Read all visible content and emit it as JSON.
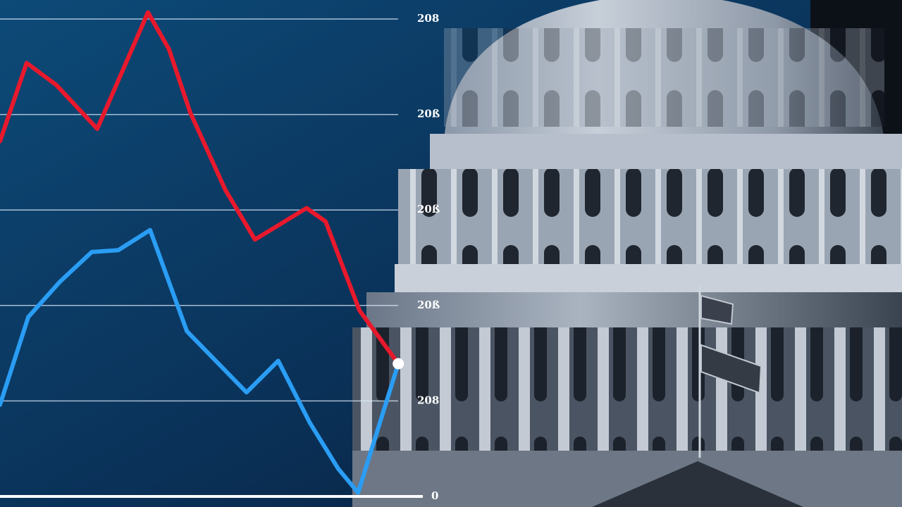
{
  "chart_data": {
    "type": "line",
    "xlim": [
      0,
      100
    ],
    "ylim": [
      0,
      5
    ],
    "yticks": [
      0,
      {
        "value": 1,
        "label": "208"
      },
      {
        "value": 2,
        "label": "20ß"
      },
      {
        "value": 3,
        "label": "20ß"
      },
      {
        "value": 4,
        "label": "20ß"
      },
      {
        "value": 5,
        "label": "208"
      }
    ],
    "grid": true,
    "series": [
      {
        "color": "#e8192c",
        "x": [
          0,
          6.3,
          13.3,
          23,
          35,
          40,
          45,
          53.3,
          60.3,
          72.5,
          77,
          85,
          94.2
        ],
        "values": [
          3.72,
          4.54,
          4.31,
          3.85,
          5.07,
          4.68,
          4.02,
          3.21,
          2.69,
          3.02,
          2.88,
          1.95,
          1.39
        ]
      },
      {
        "color": "#2a9df4",
        "x": [
          0,
          6.7,
          14.2,
          21.7,
          28,
          35.5,
          44.2,
          58.3,
          65.8,
          73.3,
          80,
          84.7,
          94.2
        ],
        "values": [
          0.96,
          1.88,
          2.25,
          2.56,
          2.58,
          2.79,
          1.73,
          1.09,
          1.42,
          0.77,
          0.29,
          0.04,
          1.39
        ]
      }
    ]
  }
}
